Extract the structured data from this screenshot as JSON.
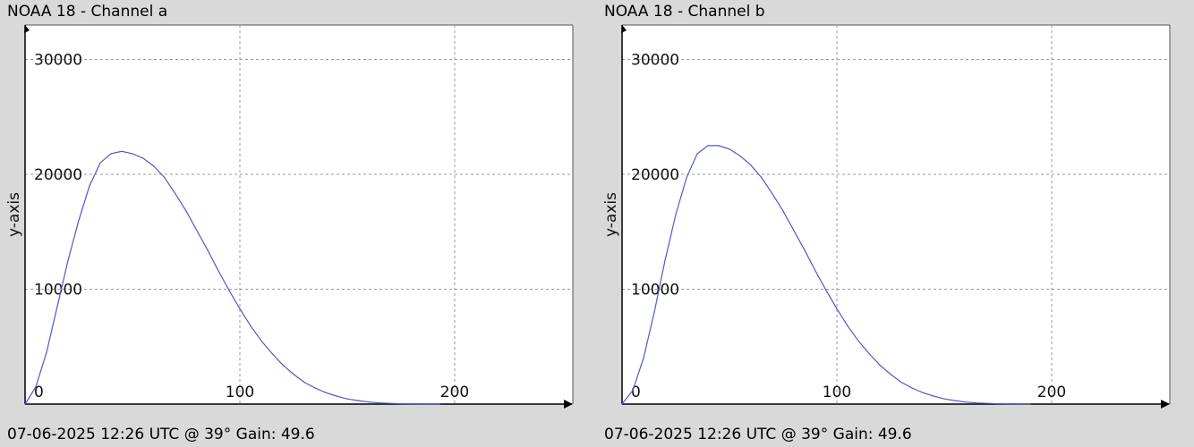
{
  "panels": [
    {
      "title": "NOAA 18 - Channel a",
      "footer": "07-06-2025 12:26 UTC @ 39° Gain: 49.6"
    },
    {
      "title": "NOAA 18 - Channel b",
      "footer": "07-06-2025 12:26 UTC @ 39° Gain: 49.6"
    }
  ],
  "colors": {
    "series": "#5555cc",
    "grid": "#9a9a9a",
    "axis": "#000000",
    "plot_bg": "#ffffff",
    "window_bg": "#d9d9d9"
  },
  "chart_data": [
    {
      "type": "line",
      "title": "NOAA 18 - Channel a",
      "xlabel": "",
      "ylabel": "y-axis",
      "xlim": [
        0,
        255
      ],
      "ylim": [
        0,
        33000
      ],
      "x_ticks": [
        0,
        100,
        200
      ],
      "y_ticks": [
        10000,
        20000,
        30000
      ],
      "grid": true,
      "series": [
        {
          "x": [
            0,
            5,
            10,
            15,
            20,
            25,
            30,
            35,
            40,
            45,
            50,
            55,
            60,
            65,
            70,
            75,
            80,
            85,
            90,
            95,
            100,
            105,
            110,
            115,
            120,
            125,
            130,
            135,
            140,
            145,
            150,
            155,
            160,
            165,
            170,
            175,
            180,
            185,
            190,
            193
          ],
          "y": [
            0,
            1500,
            4500,
            8500,
            12500,
            16000,
            19000,
            21000,
            21800,
            22000,
            21800,
            21400,
            20700,
            19700,
            18300,
            16800,
            15100,
            13400,
            11600,
            9900,
            8300,
            6800,
            5500,
            4400,
            3400,
            2600,
            1900,
            1400,
            1000,
            700,
            450,
            300,
            180,
            100,
            60,
            30,
            15,
            5,
            0,
            0
          ]
        }
      ]
    },
    {
      "type": "line",
      "title": "NOAA 18 - Channel b",
      "xlabel": "",
      "ylabel": "y-axis",
      "xlim": [
        0,
        255
      ],
      "ylim": [
        0,
        33000
      ],
      "x_ticks": [
        0,
        100,
        200
      ],
      "y_ticks": [
        10000,
        20000,
        30000
      ],
      "grid": true,
      "series": [
        {
          "x": [
            0,
            5,
            10,
            15,
            20,
            25,
            30,
            35,
            40,
            45,
            50,
            55,
            60,
            65,
            70,
            75,
            80,
            85,
            90,
            95,
            100,
            105,
            110,
            115,
            120,
            125,
            130,
            135,
            140,
            145,
            150,
            155,
            160,
            165,
            170,
            175,
            180,
            185,
            190
          ],
          "y": [
            0,
            1200,
            4000,
            8000,
            12500,
            16500,
            19700,
            21800,
            22500,
            22500,
            22200,
            21600,
            20800,
            19700,
            18300,
            16800,
            15100,
            13400,
            11600,
            9900,
            8300,
            6800,
            5500,
            4400,
            3400,
            2600,
            1900,
            1400,
            1000,
            700,
            450,
            300,
            180,
            100,
            60,
            30,
            15,
            5,
            0
          ]
        }
      ]
    }
  ]
}
